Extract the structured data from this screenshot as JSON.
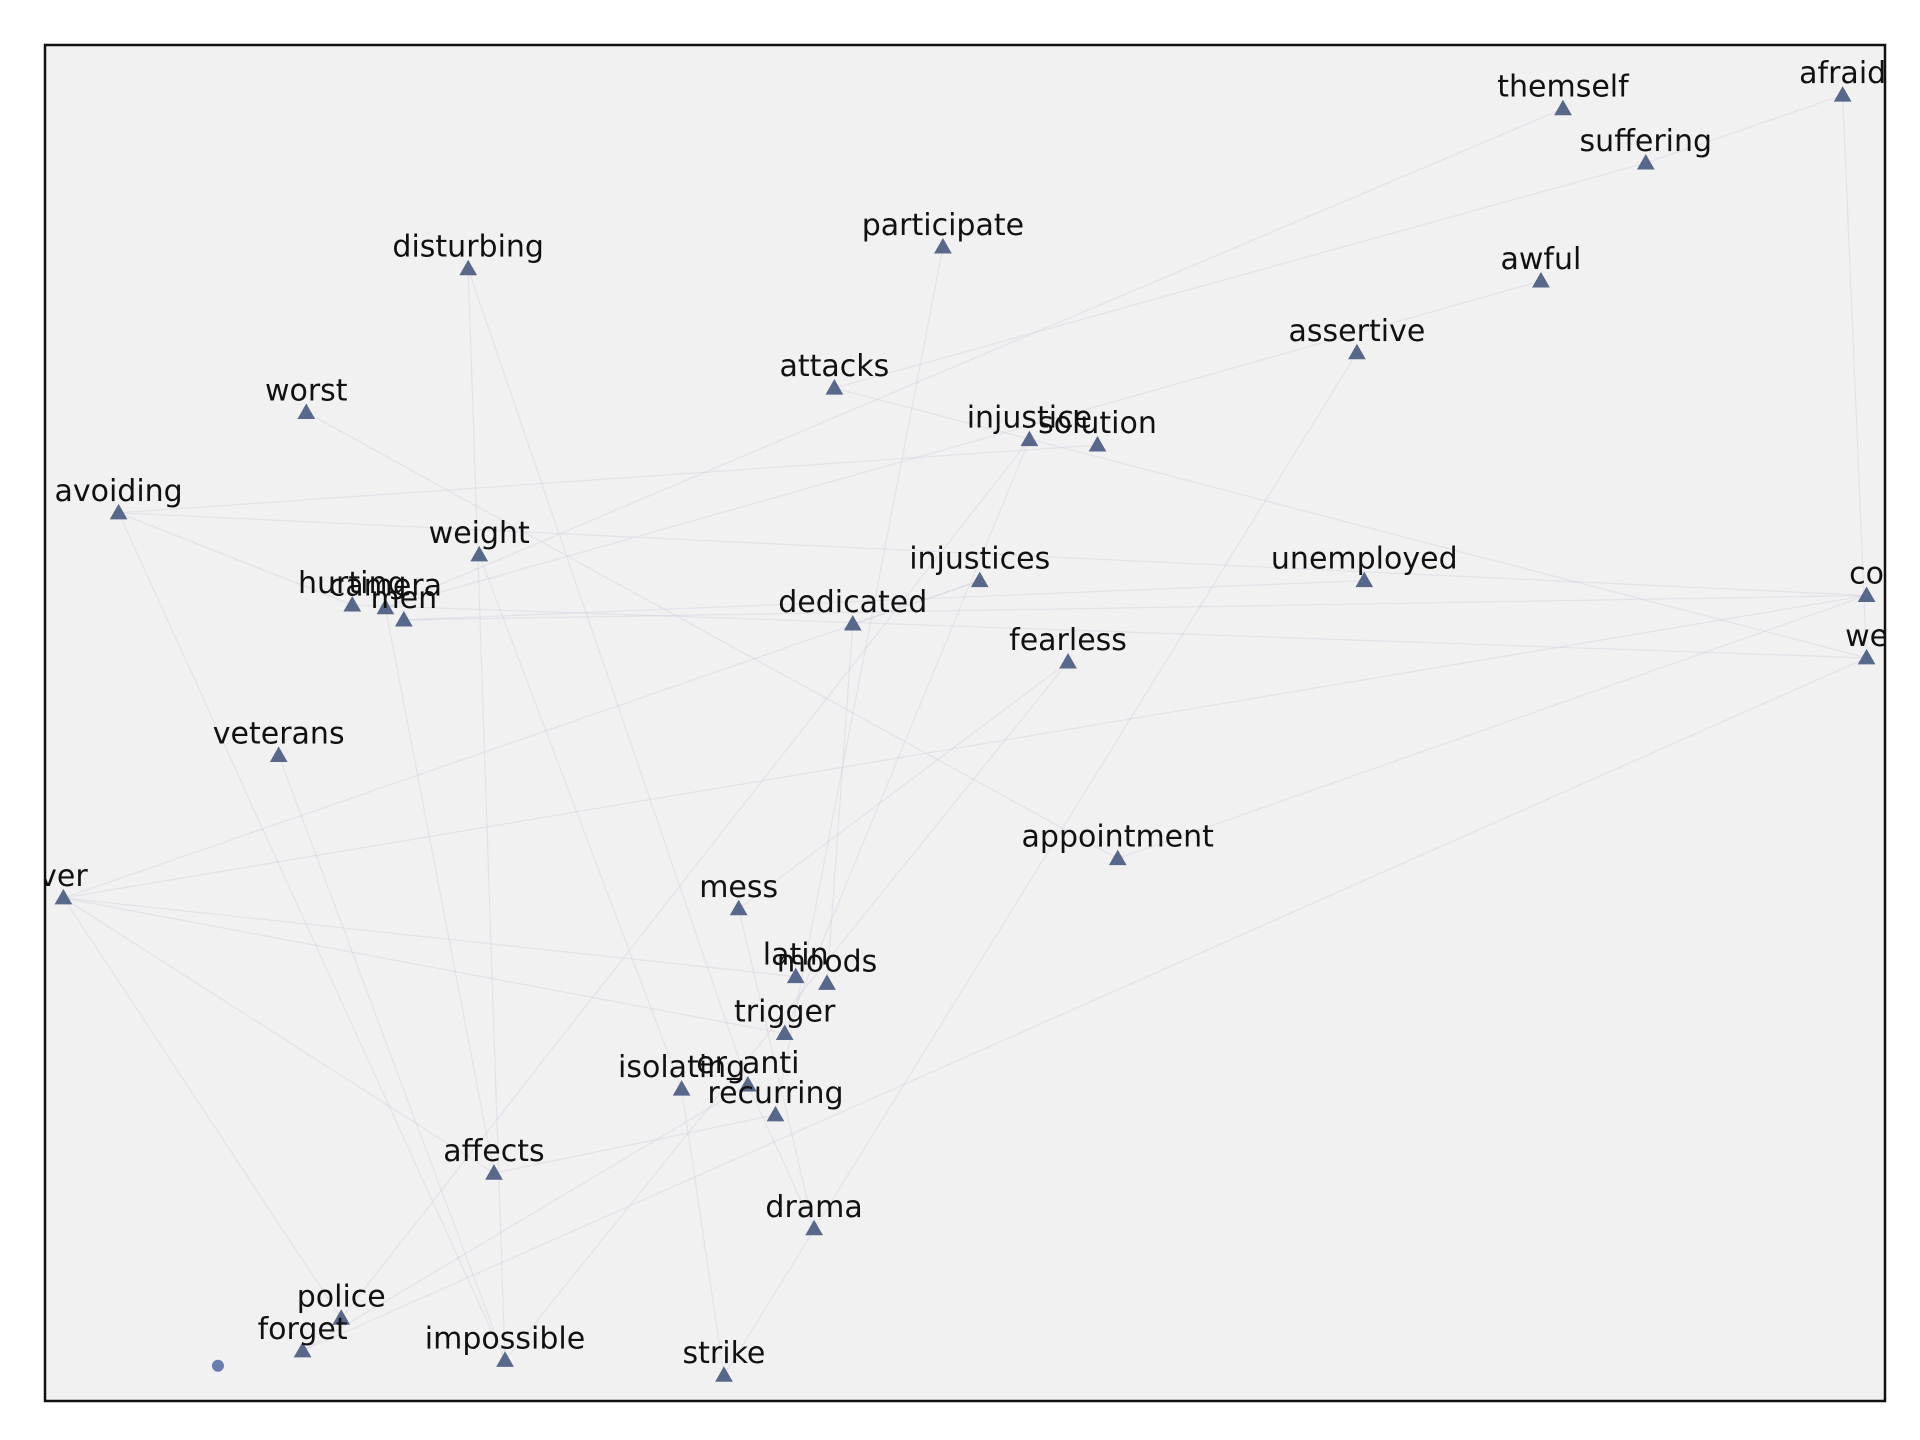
{
  "chart_data": {
    "type": "scatter",
    "title": "",
    "xlabel": "",
    "ylabel": "",
    "grid": false,
    "legend": "none",
    "xlim": [
      0,
      100
    ],
    "ylim": [
      0,
      100
    ],
    "marker_color": "#58688a",
    "background_color": "#f2f1f2",
    "edge_color": "#cfc8dc",
    "points": [
      {
        "label": "afraid",
        "x": 97.7,
        "y": 96.3
      },
      {
        "label": "themself",
        "x": 82.5,
        "y": 95.3
      },
      {
        "label": "suffering",
        "x": 87.0,
        "y": 91.3
      },
      {
        "label": "participate",
        "x": 48.8,
        "y": 85.1
      },
      {
        "label": "disturbing",
        "x": 23.0,
        "y": 83.5
      },
      {
        "label": "awful",
        "x": 81.3,
        "y": 82.6
      },
      {
        "label": "assertive",
        "x": 71.3,
        "y": 77.3
      },
      {
        "label": "attacks",
        "x": 42.9,
        "y": 74.7
      },
      {
        "label": "worst",
        "x": 14.2,
        "y": 72.9
      },
      {
        "label": "injustice",
        "x": 53.5,
        "y": 70.9
      },
      {
        "label": "solution",
        "x": 57.2,
        "y": 70.5
      },
      {
        "label": "avoiding",
        "x": 4.0,
        "y": 65.5
      },
      {
        "label": "weight",
        "x": 23.6,
        "y": 62.4
      },
      {
        "label": "injustices",
        "x": 50.8,
        "y": 60.5
      },
      {
        "label": "unemployed",
        "x": 71.7,
        "y": 60.5
      },
      {
        "label": "hurting",
        "x": 16.7,
        "y": 58.7
      },
      {
        "label": "camera",
        "x": 18.5,
        "y": 58.5
      },
      {
        "label": "men",
        "x": 19.5,
        "y": 57.6
      },
      {
        "label": "dedicated",
        "x": 43.9,
        "y": 57.3
      },
      {
        "label": "fearless",
        "x": 55.6,
        "y": 54.5
      },
      {
        "label": "veterans",
        "x": 12.7,
        "y": 47.6
      },
      {
        "label": "appointment",
        "x": 58.3,
        "y": 40.0
      },
      {
        "label": "mess",
        "x": 37.7,
        "y": 36.3
      },
      {
        "label": "latin",
        "x": 40.8,
        "y": 31.3
      },
      {
        "label": "moods",
        "x": 42.5,
        "y": 30.8
      },
      {
        "label": "trigger",
        "x": 40.2,
        "y": 27.1
      },
      {
        "label": "er_anti",
        "x": 38.2,
        "y": 23.3
      },
      {
        "label": "isolating",
        "x": 34.6,
        "y": 23.0
      },
      {
        "label": "recurring",
        "x": 39.7,
        "y": 21.1
      },
      {
        "label": "affects",
        "x": 24.4,
        "y": 16.8
      },
      {
        "label": "drama",
        "x": 41.8,
        "y": 12.7
      },
      {
        "label": "police",
        "x": 16.1,
        "y": 6.1
      },
      {
        "label": "forget",
        "x": 14.0,
        "y": 3.7
      },
      {
        "label": "impossible",
        "x": 25.0,
        "y": 3.0
      },
      {
        "label": "strike",
        "x": 36.9,
        "y": 1.9
      },
      {
        "label": "co",
        "x": 99.0,
        "y": 59.4
      },
      {
        "label": "we",
        "x": 99.0,
        "y": 54.8
      },
      {
        "label": "ver",
        "x": 1.0,
        "y": 37.1
      }
    ],
    "dot_points": [
      {
        "x": 9.4,
        "y": 2.6
      }
    ],
    "edges": [
      [
        0,
        36
      ],
      [
        1,
        16
      ],
      [
        2,
        7
      ],
      [
        3,
        28
      ],
      [
        4,
        33
      ],
      [
        4,
        26
      ],
      [
        5,
        16
      ],
      [
        6,
        34
      ],
      [
        7,
        36
      ],
      [
        8,
        21
      ],
      [
        9,
        31
      ],
      [
        10,
        11
      ],
      [
        11,
        35
      ],
      [
        12,
        27
      ],
      [
        13,
        37
      ],
      [
        14,
        17
      ],
      [
        15,
        36
      ],
      [
        16,
        29
      ],
      [
        17,
        35
      ],
      [
        18,
        24
      ],
      [
        19,
        22
      ],
      [
        20,
        33
      ],
      [
        21,
        35
      ],
      [
        22,
        30
      ],
      [
        23,
        37
      ],
      [
        25,
        37
      ],
      [
        26,
        32
      ],
      [
        27,
        34
      ],
      [
        28,
        29
      ],
      [
        29,
        37
      ],
      [
        30,
        26
      ],
      [
        31,
        37
      ],
      [
        32,
        36
      ],
      [
        33,
        11
      ],
      [
        35,
        37
      ],
      [
        0,
        2
      ],
      [
        9,
        25
      ],
      [
        13,
        18
      ],
      [
        19,
        33
      ],
      [
        15,
        11
      ]
    ]
  }
}
